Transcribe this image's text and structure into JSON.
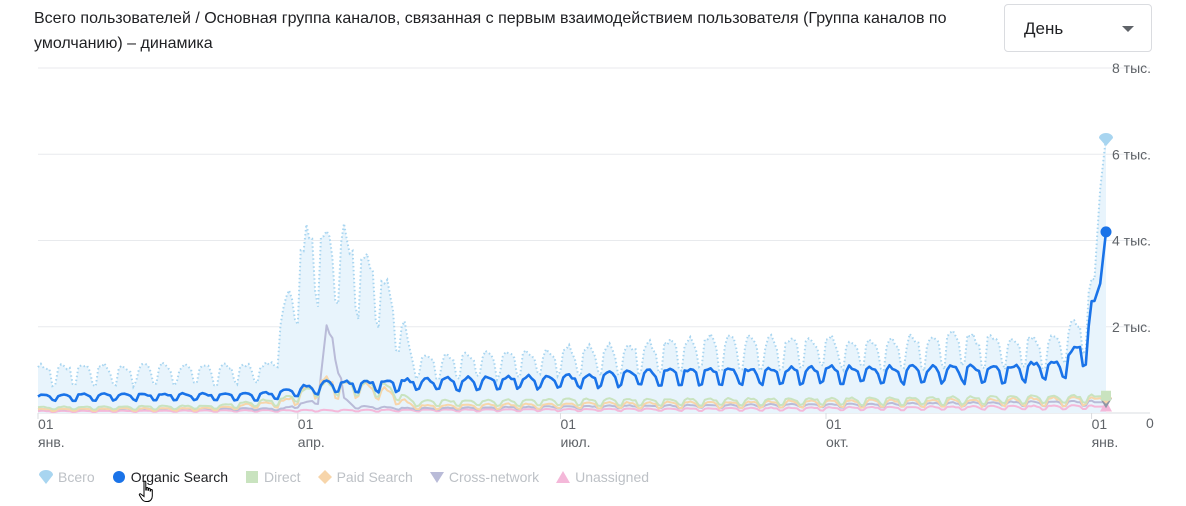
{
  "header": {
    "title": "Всего пользователей / Основная группа каналов, связанная с первым взаимодействием пользователя (Группа каналов по умолчанию) – динамика"
  },
  "period_dropdown": {
    "selected": "День"
  },
  "legend": [
    {
      "name": "Всего",
      "icon": "drop-pin-icon",
      "color": "#a8d5f0",
      "active": false
    },
    {
      "name": "Organic Search",
      "icon": "dot-icon",
      "color": "#1a73e8",
      "active": true
    },
    {
      "name": "Direct",
      "icon": "square-icon",
      "color": "#c9e3bf",
      "active": false
    },
    {
      "name": "Paid Search",
      "icon": "diamond-icon",
      "color": "#f7d5aa",
      "active": false
    },
    {
      "name": "Cross-network",
      "icon": "triangle-down-icon",
      "color": "#b9bbd8",
      "active": false
    },
    {
      "name": "Unassigned",
      "icon": "triangle-up-icon",
      "color": "#f4b8d9",
      "active": false
    }
  ],
  "chart_data": {
    "type": "line",
    "x_tick_labels": [
      {
        "day": "01",
        "month": "янв."
      },
      {
        "day": "01",
        "month": "апр."
      },
      {
        "day": "01",
        "month": "июл."
      },
      {
        "day": "01",
        "month": "окт."
      },
      {
        "day": "01",
        "month": "янв."
      }
    ],
    "y_tick_labels": [
      "0",
      "2 тыс.",
      "4 тыс.",
      "6 тыс.",
      "8 тыс."
    ],
    "ylim": [
      0,
      8000
    ],
    "granularity": "day",
    "grid": true,
    "legend_position": "bottom-left",
    "series": [
      {
        "name": "Всего",
        "style": "dotted-area",
        "color": "#a8d5f0",
        "anchor_days": [
          0,
          14,
          28,
          42,
          56,
          70,
          80,
          85,
          90,
          95,
          100,
          104,
          108,
          112,
          116,
          120,
          126,
          130,
          140,
          154,
          168,
          182,
          196,
          210,
          224,
          238,
          252,
          266,
          280,
          294,
          308,
          322,
          336,
          350,
          356,
          362,
          366,
          368,
          370
        ],
        "anchor_values": [
          950,
          1000,
          950,
          1000,
          950,
          1000,
          1000,
          2100,
          3200,
          3900,
          3800,
          3900,
          3600,
          3400,
          3100,
          2700,
          2000,
          1200,
          1150,
          1200,
          1250,
          1300,
          1350,
          1400,
          1500,
          1550,
          1500,
          1550,
          1500,
          1500,
          1550,
          1600,
          1550,
          1600,
          1700,
          2000,
          3100,
          5200,
          6400
        ]
      },
      {
        "name": "Organic Search",
        "style": "line",
        "color": "#1a73e8",
        "anchor_days": [
          0,
          28,
          56,
          80,
          100,
          130,
          160,
          190,
          220,
          250,
          280,
          310,
          340,
          355,
          360,
          363,
          366,
          368,
          370
        ],
        "anchor_values": [
          380,
          400,
          400,
          420,
          650,
          700,
          750,
          800,
          900,
          920,
          950,
          950,
          1000,
          1100,
          1400,
          1600,
          2600,
          3000,
          4200
        ]
      },
      {
        "name": "Direct",
        "style": "line",
        "color": "#c9e3bf",
        "anchor_days": [
          0,
          60,
          85,
          100,
          120,
          130,
          200,
          300,
          360,
          370
        ],
        "anchor_values": [
          120,
          150,
          300,
          650,
          600,
          250,
          280,
          300,
          350,
          400
        ]
      },
      {
        "name": "Paid Search",
        "style": "line",
        "color": "#f7d5aa",
        "anchor_days": [
          0,
          60,
          85,
          100,
          120,
          130,
          200,
          300,
          360,
          370
        ],
        "anchor_values": [
          80,
          100,
          250,
          700,
          500,
          150,
          200,
          250,
          300,
          350
        ]
      },
      {
        "name": "Cross-network",
        "style": "line",
        "color": "#b9bbd8",
        "anchor_days": [
          0,
          85,
          97,
          100,
          103,
          106,
          110,
          130,
          200,
          300,
          370
        ],
        "anchor_values": [
          80,
          100,
          300,
          1800,
          1700,
          300,
          150,
          100,
          150,
          200,
          250
        ]
      },
      {
        "name": "Unassigned",
        "style": "line",
        "color": "#f4b8d9",
        "anchor_days": [
          0,
          100,
          200,
          300,
          370
        ],
        "anchor_values": [
          40,
          60,
          80,
          120,
          150
        ]
      }
    ]
  }
}
